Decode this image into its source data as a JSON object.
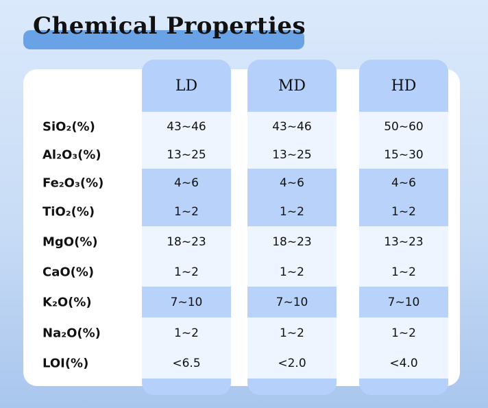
{
  "title": "Chemical Properties",
  "colors": {
    "accent": "#6aa2e6",
    "column": "#b5d1fb",
    "cell_light": "#eef5fe",
    "cell_dark": "#b8d2fa"
  },
  "columns": [
    "LD",
    "MD",
    "HD"
  ],
  "rows": [
    {
      "label": "SiO₂(%)",
      "values": [
        "43~46",
        "43~46",
        "50~60"
      ],
      "shade": "light"
    },
    {
      "label": "Al₂O₃(%)",
      "values": [
        "13~25",
        "13~25",
        "15~30"
      ],
      "shade": "light"
    },
    {
      "label": "Fe₂O₃(%)",
      "values": [
        "4~6",
        "4~6",
        "4~6"
      ],
      "shade": "dark"
    },
    {
      "label": "TiO₂(%)",
      "values": [
        "1~2",
        "1~2",
        "1~2"
      ],
      "shade": "dark"
    },
    {
      "label": "MgO(%)",
      "values": [
        "18~23",
        "18~23",
        "13~23"
      ],
      "shade": "light"
    },
    {
      "label": "CaO(%)",
      "values": [
        "1~2",
        "1~2",
        "1~2"
      ],
      "shade": "light"
    },
    {
      "label": "K₂O(%)",
      "values": [
        "7~10",
        "7~10",
        "7~10"
      ],
      "shade": "dark"
    },
    {
      "label": "Na₂O(%)",
      "values": [
        "1~2",
        "1~2",
        "1~2"
      ],
      "shade": "light"
    },
    {
      "label": "LOI(%)",
      "values": [
        "<6.5",
        "<2.0",
        "<4.0"
      ],
      "shade": "light"
    }
  ]
}
